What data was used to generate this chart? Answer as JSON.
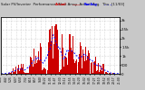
{
  "title": "Solar PV/Inverter  Performance  West Array  Actual  Avg.  Thu. [11/03]",
  "bg_color": "#c8c8c8",
  "plot_bg": "#ffffff",
  "bar_color": "#cc0000",
  "avg_color": "#0000ff",
  "grid_color": "#aaaaaa",
  "legend_actual_color": "#cc0000",
  "legend_avg_color": "#0000ff",
  "ytick_labels": [
    "3k",
    "2.5k",
    "2k",
    "1.5k",
    "1k",
    "500",
    "0"
  ],
  "ytick_vals": [
    3000,
    2500,
    2000,
    1500,
    1000,
    500,
    0
  ],
  "ylim": [
    0,
    3200
  ],
  "num_points": 144
}
